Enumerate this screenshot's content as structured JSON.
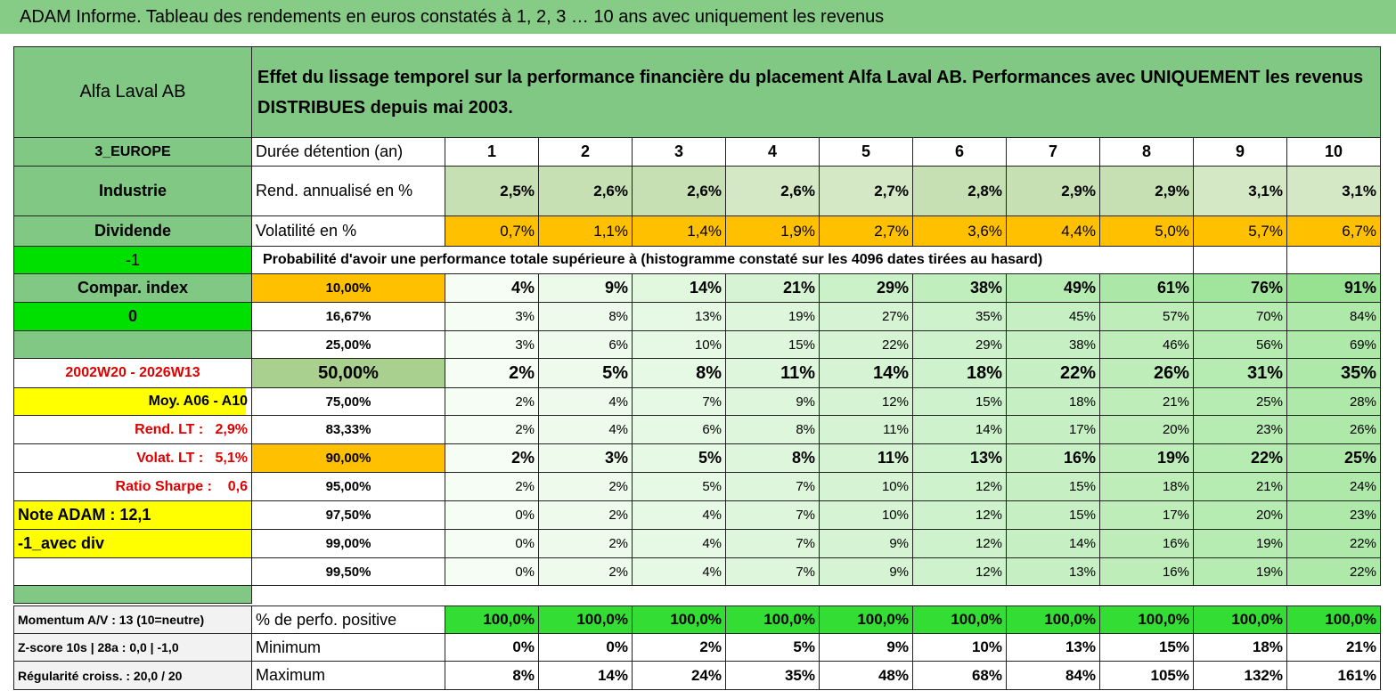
{
  "title": "ADAM Informe. Tableau des rendements en euros constatés à 1, 2, 3 … 10 ans avec uniquement les revenus",
  "header": {
    "name": "Alfa Laval AB",
    "description": "Effet du lissage temporel sur la performance financière du placement Alfa Laval AB. Performances avec UNIQUEMENT les revenus DISTRIBUES depuis mai 2003."
  },
  "side": [
    "3_EUROPE",
    "Industrie",
    "Dividende",
    "-1",
    "Compar. index",
    "0",
    "2002W20 - 2026W13",
    "Moy. A06 - A10",
    "Rend. LT :   2,9%",
    "Volat. LT :   5,1%",
    "Ratio Sharpe :    0,6",
    "Note ADAM : 12,1",
    "-1_avec div"
  ],
  "holding": {
    "label": "Durée détention (an)",
    "years": [
      "1",
      "2",
      "3",
      "4",
      "5",
      "6",
      "7",
      "8",
      "9",
      "10"
    ]
  },
  "returns": {
    "label": "Rend. annualisé en %",
    "values": [
      "2,5%",
      "2,6%",
      "2,6%",
      "2,6%",
      "2,7%",
      "2,8%",
      "2,9%",
      "2,9%",
      "3,1%",
      "3,1%"
    ]
  },
  "volatility": {
    "label": "Volatilité en %",
    "values": [
      "0,7%",
      "1,1%",
      "1,4%",
      "1,9%",
      "2,7%",
      "3,6%",
      "4,4%",
      "5,0%",
      "5,7%",
      "6,7%"
    ]
  },
  "probability": {
    "title": "Probabilité d'avoir une performance totale supérieure à (histogramme constaté sur les 4096 dates tirées au hasard)",
    "rows": [
      {
        "threshold": "10,00%",
        "values": [
          "4%",
          "9%",
          "14%",
          "21%",
          "29%",
          "38%",
          "49%",
          "61%",
          "76%",
          "91%"
        ]
      },
      {
        "threshold": "16,67%",
        "values": [
          "3%",
          "8%",
          "13%",
          "19%",
          "27%",
          "35%",
          "45%",
          "57%",
          "70%",
          "84%"
        ]
      },
      {
        "threshold": "25,00%",
        "values": [
          "3%",
          "6%",
          "10%",
          "15%",
          "22%",
          "29%",
          "38%",
          "46%",
          "56%",
          "69%"
        ]
      },
      {
        "threshold": "50,00%",
        "values": [
          "2%",
          "5%",
          "8%",
          "11%",
          "14%",
          "18%",
          "22%",
          "26%",
          "31%",
          "35%"
        ]
      },
      {
        "threshold": "75,00%",
        "values": [
          "2%",
          "4%",
          "7%",
          "9%",
          "12%",
          "15%",
          "18%",
          "21%",
          "25%",
          "28%"
        ]
      },
      {
        "threshold": "83,33%",
        "values": [
          "2%",
          "4%",
          "6%",
          "8%",
          "11%",
          "14%",
          "17%",
          "20%",
          "23%",
          "26%"
        ]
      },
      {
        "threshold": "90,00%",
        "values": [
          "2%",
          "3%",
          "5%",
          "8%",
          "11%",
          "13%",
          "16%",
          "19%",
          "22%",
          "25%"
        ]
      },
      {
        "threshold": "95,00%",
        "values": [
          "2%",
          "2%",
          "5%",
          "7%",
          "10%",
          "12%",
          "15%",
          "18%",
          "21%",
          "24%"
        ]
      },
      {
        "threshold": "97,50%",
        "values": [
          "0%",
          "2%",
          "4%",
          "7%",
          "10%",
          "12%",
          "15%",
          "17%",
          "20%",
          "23%"
        ]
      },
      {
        "threshold": "99,00%",
        "values": [
          "0%",
          "2%",
          "4%",
          "7%",
          "9%",
          "12%",
          "14%",
          "16%",
          "19%",
          "22%"
        ]
      },
      {
        "threshold": "99,50%",
        "values": [
          "0%",
          "2%",
          "4%",
          "7%",
          "9%",
          "12%",
          "13%",
          "16%",
          "19%",
          "22%"
        ]
      }
    ]
  },
  "summary": [
    {
      "side": "Momentum A/V : 13 (10=neutre)",
      "label": "% de perfo. positive",
      "values": [
        "100,0%",
        "100,0%",
        "100,0%",
        "100,0%",
        "100,0%",
        "100,0%",
        "100,0%",
        "100,0%",
        "100,0%",
        "100,0%"
      ]
    },
    {
      "side": "Z-score 10s | 28a : 0,0 | -1,0",
      "label": "Minimum",
      "values": [
        "0%",
        "0%",
        "2%",
        "5%",
        "9%",
        "10%",
        "13%",
        "15%",
        "18%",
        "21%"
      ]
    },
    {
      "side": "Régularité croiss. : 20,0 / 20",
      "label": "Maximum",
      "values": [
        "8%",
        "14%",
        "24%",
        "35%",
        "48%",
        "68%",
        "84%",
        "105%",
        "132%",
        "161%"
      ]
    }
  ]
}
